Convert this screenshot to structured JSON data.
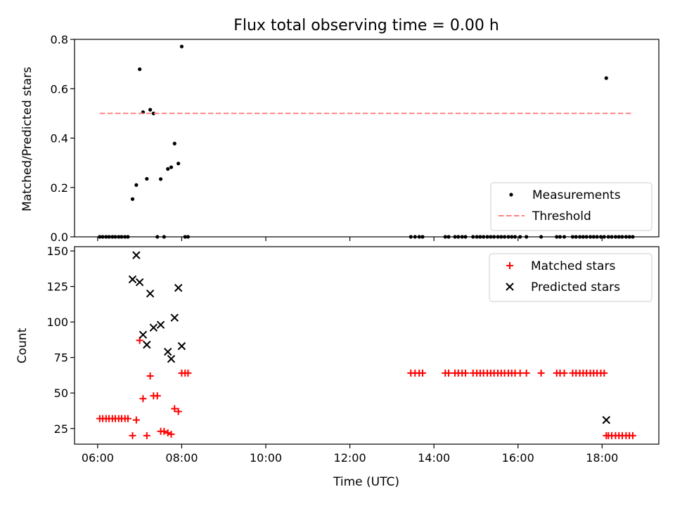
{
  "chart_data": [
    {
      "type": "scatter",
      "title": "Flux total observing time = 0.00 h",
      "xlabel": "",
      "ylabel": "Matched/Predicted stars",
      "xlim": [
        5.45,
        19.35
      ],
      "ylim": [
        0,
        0.8
      ],
      "yticks": [
        0.0,
        0.2,
        0.4,
        0.6,
        0.8
      ],
      "ytick_labels": [
        "0.0",
        "0.2",
        "0.4",
        "0.6",
        "0.8"
      ],
      "legend_position": "lower-right",
      "grid": false,
      "series": [
        {
          "name": "Measurements",
          "marker": "dot",
          "color": "#000000",
          "points": [
            [
              6.05,
              0
            ],
            [
              6.12,
              0
            ],
            [
              6.2,
              0
            ],
            [
              6.27,
              0
            ],
            [
              6.35,
              0
            ],
            [
              6.42,
              0
            ],
            [
              6.5,
              0
            ],
            [
              6.57,
              0
            ],
            [
              6.65,
              0
            ],
            [
              6.72,
              0
            ],
            [
              6.83,
              0.153
            ],
            [
              6.92,
              0.21
            ],
            [
              7.0,
              0.679
            ],
            [
              7.08,
              0.505
            ],
            [
              7.17,
              0.235
            ],
            [
              7.25,
              0.515
            ],
            [
              7.33,
              0.5
            ],
            [
              7.42,
              0
            ],
            [
              7.5,
              0.234
            ],
            [
              7.58,
              0
            ],
            [
              7.67,
              0.275
            ],
            [
              7.75,
              0.282
            ],
            [
              7.83,
              0.378
            ],
            [
              7.92,
              0.297
            ],
            [
              8.0,
              0.771
            ],
            [
              8.08,
              0
            ],
            [
              8.15,
              0
            ],
            [
              13.45,
              0
            ],
            [
              13.55,
              0
            ],
            [
              13.65,
              0
            ],
            [
              13.73,
              0
            ],
            [
              14.27,
              0
            ],
            [
              14.35,
              0
            ],
            [
              14.5,
              0
            ],
            [
              14.58,
              0
            ],
            [
              14.67,
              0
            ],
            [
              14.75,
              0
            ],
            [
              14.93,
              0
            ],
            [
              15.02,
              0
            ],
            [
              15.1,
              0
            ],
            [
              15.18,
              0
            ],
            [
              15.27,
              0
            ],
            [
              15.35,
              0
            ],
            [
              15.43,
              0
            ],
            [
              15.52,
              0
            ],
            [
              15.6,
              0
            ],
            [
              15.68,
              0
            ],
            [
              15.77,
              0
            ],
            [
              15.85,
              0
            ],
            [
              15.93,
              0
            ],
            [
              16.05,
              0
            ],
            [
              16.2,
              0
            ],
            [
              16.55,
              0
            ],
            [
              16.92,
              0
            ],
            [
              17.0,
              0
            ],
            [
              17.1,
              0
            ],
            [
              17.3,
              0
            ],
            [
              17.38,
              0
            ],
            [
              17.47,
              0
            ],
            [
              17.55,
              0
            ],
            [
              17.63,
              0
            ],
            [
              17.72,
              0
            ],
            [
              17.8,
              0
            ],
            [
              17.88,
              0
            ],
            [
              17.97,
              0
            ],
            [
              18.05,
              0
            ],
            [
              18.1,
              0.643
            ],
            [
              18.15,
              0
            ],
            [
              18.23,
              0
            ],
            [
              18.32,
              0
            ],
            [
              18.4,
              0
            ],
            [
              18.48,
              0
            ],
            [
              18.57,
              0
            ],
            [
              18.65,
              0
            ],
            [
              18.73,
              0
            ]
          ]
        },
        {
          "name": "Threshold",
          "style": "dashed",
          "color": "#ff8080",
          "points": [
            [
              6.05,
              0.5
            ],
            [
              18.75,
              0.5
            ]
          ]
        }
      ]
    },
    {
      "type": "scatter",
      "title": "",
      "xlabel": "Time (UTC)",
      "ylabel": "Count",
      "xlim": [
        5.45,
        19.35
      ],
      "ylim": [
        14,
        153
      ],
      "xticks": [
        6,
        8,
        10,
        12,
        14,
        16,
        18
      ],
      "xtick_labels": [
        "06:00",
        "08:00",
        "10:00",
        "12:00",
        "14:00",
        "16:00",
        "18:00"
      ],
      "yticks": [
        25,
        50,
        75,
        100,
        125,
        150
      ],
      "ytick_labels": [
        "25",
        "50",
        "75",
        "100",
        "125",
        "150"
      ],
      "legend_position": "top-right",
      "grid": false,
      "series": [
        {
          "name": "Matched stars",
          "marker": "plus",
          "color": "#ff0000",
          "points": [
            [
              6.05,
              32
            ],
            [
              6.12,
              32
            ],
            [
              6.2,
              32
            ],
            [
              6.27,
              32
            ],
            [
              6.35,
              32
            ],
            [
              6.42,
              32
            ],
            [
              6.5,
              32
            ],
            [
              6.57,
              32
            ],
            [
              6.65,
              32
            ],
            [
              6.72,
              32
            ],
            [
              6.83,
              20
            ],
            [
              6.92,
              31
            ],
            [
              7.0,
              87
            ],
            [
              7.08,
              46
            ],
            [
              7.17,
              20
            ],
            [
              7.25,
              62
            ],
            [
              7.33,
              48
            ],
            [
              7.42,
              48
            ],
            [
              7.5,
              23
            ],
            [
              7.58,
              23
            ],
            [
              7.67,
              22
            ],
            [
              7.75,
              21
            ],
            [
              7.83,
              39
            ],
            [
              7.92,
              37
            ],
            [
              8.0,
              64
            ],
            [
              8.08,
              64
            ],
            [
              8.15,
              64
            ],
            [
              13.45,
              64
            ],
            [
              13.55,
              64
            ],
            [
              13.65,
              64
            ],
            [
              13.73,
              64
            ],
            [
              14.27,
              64
            ],
            [
              14.35,
              64
            ],
            [
              14.5,
              64
            ],
            [
              14.58,
              64
            ],
            [
              14.67,
              64
            ],
            [
              14.75,
              64
            ],
            [
              14.93,
              64
            ],
            [
              15.02,
              64
            ],
            [
              15.1,
              64
            ],
            [
              15.18,
              64
            ],
            [
              15.27,
              64
            ],
            [
              15.35,
              64
            ],
            [
              15.43,
              64
            ],
            [
              15.52,
              64
            ],
            [
              15.6,
              64
            ],
            [
              15.68,
              64
            ],
            [
              15.77,
              64
            ],
            [
              15.85,
              64
            ],
            [
              15.93,
              64
            ],
            [
              16.05,
              64
            ],
            [
              16.2,
              64
            ],
            [
              16.55,
              64
            ],
            [
              16.92,
              64
            ],
            [
              17.0,
              64
            ],
            [
              17.1,
              64
            ],
            [
              17.3,
              64
            ],
            [
              17.38,
              64
            ],
            [
              17.47,
              64
            ],
            [
              17.55,
              64
            ],
            [
              17.63,
              64
            ],
            [
              17.72,
              64
            ],
            [
              17.8,
              64
            ],
            [
              17.88,
              64
            ],
            [
              17.97,
              64
            ],
            [
              18.05,
              64
            ],
            [
              18.1,
              20
            ],
            [
              18.15,
              20
            ],
            [
              18.23,
              20
            ],
            [
              18.32,
              20
            ],
            [
              18.4,
              20
            ],
            [
              18.48,
              20
            ],
            [
              18.57,
              20
            ],
            [
              18.65,
              20
            ],
            [
              18.73,
              20
            ]
          ]
        },
        {
          "name": "Predicted stars",
          "marker": "x",
          "color": "#000000",
          "points": [
            [
              6.83,
              130
            ],
            [
              6.92,
              147
            ],
            [
              7.0,
              128
            ],
            [
              7.08,
              91
            ],
            [
              7.17,
              84
            ],
            [
              7.25,
              120
            ],
            [
              7.33,
              96
            ],
            [
              7.5,
              98
            ],
            [
              7.67,
              79
            ],
            [
              7.75,
              74
            ],
            [
              7.83,
              103
            ],
            [
              7.92,
              124
            ],
            [
              8.0,
              83
            ],
            [
              18.1,
              31
            ]
          ]
        }
      ]
    }
  ]
}
